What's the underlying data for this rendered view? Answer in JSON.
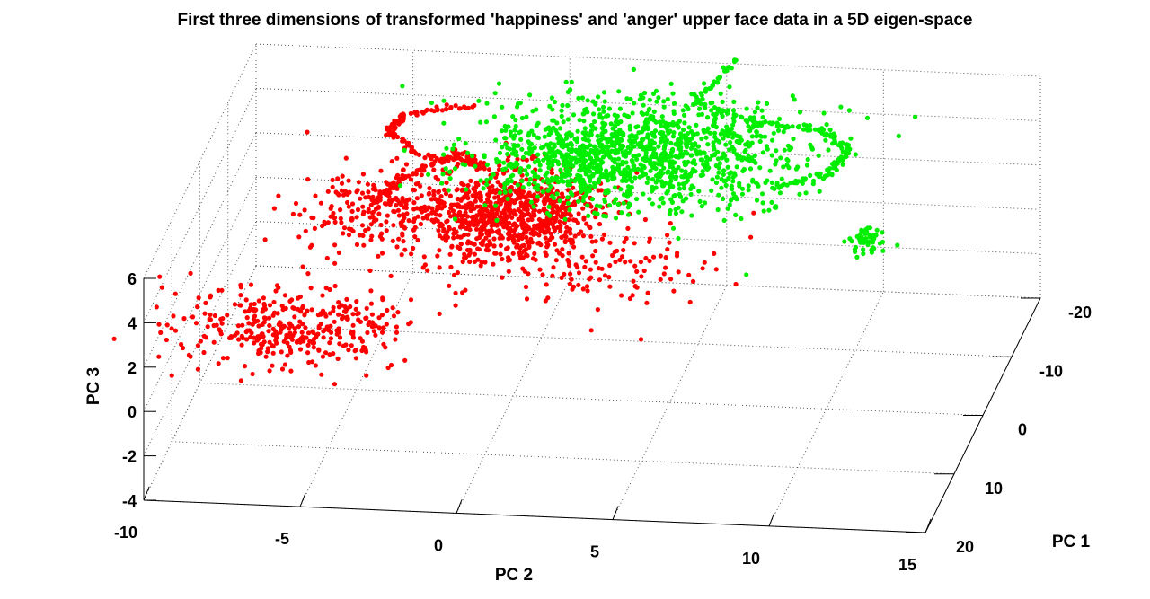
{
  "chart_data": {
    "type": "scatter",
    "projection": "3d",
    "title": "First three dimensions of transformed 'happiness' and 'anger' upper face data in a 5D eigen-space",
    "xlabel": "PC 2",
    "ylabel": "PC 1",
    "zlabel": "PC 3",
    "xlim": [
      -10,
      15
    ],
    "ylim": [
      -20,
      20
    ],
    "zlim": [
      -4,
      6
    ],
    "x_ticks": [
      "-10",
      "-5",
      "0",
      "5",
      "10",
      "15"
    ],
    "y_ticks": [
      "-20",
      "-10",
      "0",
      "10",
      "20"
    ],
    "z_ticks": [
      "-4",
      "-2",
      "0",
      "2",
      "4",
      "6"
    ],
    "grid": true,
    "legend": "none",
    "series": [
      {
        "color": "#ff0000",
        "clusters": [
          {
            "pc2": -0.5,
            "pc1": -2,
            "pc3": 3.6,
            "spread": [
              1.6,
              3,
              0.7
            ],
            "n": 900
          },
          {
            "pc2": -6.5,
            "pc1": 6,
            "pc3": 0.3,
            "spread": [
              1.8,
              2.5,
              0.6
            ],
            "n": 380
          },
          {
            "pc2": -4.5,
            "pc1": 1,
            "pc3": 4.4,
            "spread": [
              1.2,
              3,
              0.5
            ],
            "n": 170
          },
          {
            "pc2": 3,
            "pc1": 2,
            "pc3": 2.5,
            "spread": [
              1.8,
              3,
              0.5
            ],
            "n": 120
          }
        ],
        "trajectory": [
          {
            "pc2": -2.5,
            "pc1": -14,
            "pc3": 5.3
          },
          {
            "pc2": -4.3,
            "pc1": -10,
            "pc3": 5.8
          },
          {
            "pc2": -4.8,
            "pc1": -9,
            "pc3": 5.3
          },
          {
            "pc2": -3.5,
            "pc1": -6,
            "pc3": 5.1
          },
          {
            "pc2": -1.5,
            "pc1": -6,
            "pc3": 4.7
          },
          {
            "pc2": -2.5,
            "pc1": -8,
            "pc3": 4.7
          },
          {
            "pc2": -3.8,
            "pc1": -4,
            "pc3": 4.6
          },
          {
            "pc2": -4.5,
            "pc1": 0,
            "pc3": 4.4
          }
        ]
      },
      {
        "color": "#00ee00",
        "clusters": [
          {
            "pc2": 3.5,
            "pc1": -8,
            "pc3": 5.0,
            "spread": [
              2.5,
              4,
              0.7
            ],
            "n": 1100
          },
          {
            "pc2": 1.5,
            "pc1": -6,
            "pc3": 5.0,
            "spread": [
              1.5,
              3,
              0.4
            ],
            "n": 250
          },
          {
            "pc2": 10.5,
            "pc1": -8,
            "pc3": 1.5,
            "spread": [
              0.3,
              1,
              0.15
            ],
            "n": 50
          }
        ],
        "trajectory": [
          {
            "pc2": 5.5,
            "pc1": -18,
            "pc3": 6.7
          },
          {
            "pc2": 4.5,
            "pc1": -14,
            "pc3": 5.8
          },
          {
            "pc2": 6.5,
            "pc1": -14,
            "pc3": 5.0
          },
          {
            "pc2": 8.5,
            "pc1": -14,
            "pc3": 4.8
          },
          {
            "pc2": 9.5,
            "pc1": -13,
            "pc3": 4.3
          },
          {
            "pc2": 9.0,
            "pc1": -11,
            "pc3": 3.5
          },
          {
            "pc2": 7.5,
            "pc1": -8,
            "pc3": 3.7
          }
        ]
      }
    ]
  }
}
